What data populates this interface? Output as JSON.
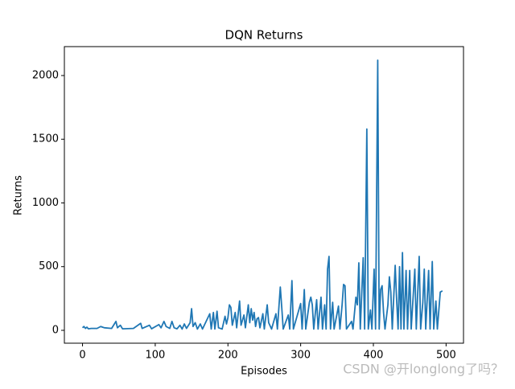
{
  "chart_data": {
    "type": "line",
    "title": "DQN Returns",
    "x_label": "Episodes",
    "y_label": "Returns",
    "color": "#1f77b4",
    "x": [
      0,
      2,
      4,
      6,
      8,
      12,
      20,
      25,
      30,
      40,
      46,
      48,
      52,
      55,
      70,
      80,
      82,
      92,
      95,
      105,
      108,
      112,
      115,
      120,
      123,
      126,
      130,
      134,
      137,
      140,
      143,
      148,
      150,
      152,
      155,
      158,
      162,
      165,
      175,
      177,
      180,
      182,
      185,
      187,
      192,
      196,
      198,
      200,
      202,
      204,
      206,
      210,
      212,
      216,
      218,
      222,
      224,
      228,
      230,
      232,
      234,
      236,
      238,
      240,
      242,
      244,
      248,
      250,
      254,
      256,
      260,
      266,
      268,
      272,
      274,
      276,
      283,
      285,
      288,
      290,
      300,
      302,
      305,
      307,
      312,
      314,
      316,
      318,
      322,
      324,
      328,
      330,
      333,
      335,
      337,
      339,
      341,
      344,
      346,
      352,
      354,
      357,
      359,
      361,
      363,
      370,
      372,
      376,
      378,
      380,
      382,
      386,
      388,
      391,
      393,
      396,
      398,
      401,
      403,
      406,
      408,
      410,
      412,
      414,
      416,
      420,
      422,
      424,
      426,
      430,
      432,
      434,
      436,
      438,
      440,
      442,
      445,
      447,
      450,
      452,
      457,
      459,
      463,
      465,
      468,
      470,
      472,
      476,
      478,
      481,
      483,
      486,
      488,
      492,
      495
    ],
    "values": [
      20,
      30,
      15,
      25,
      12,
      15,
      15,
      30,
      20,
      15,
      70,
      20,
      40,
      12,
      15,
      55,
      15,
      40,
      12,
      45,
      20,
      70,
      30,
      15,
      70,
      20,
      12,
      40,
      10,
      50,
      15,
      60,
      170,
      30,
      60,
      10,
      50,
      10,
      130,
      10,
      140,
      10,
      150,
      20,
      10,
      110,
      50,
      100,
      200,
      180,
      40,
      140,
      20,
      230,
      40,
      120,
      20,
      200,
      60,
      170,
      80,
      140,
      30,
      90,
      100,
      20,
      130,
      10,
      200,
      60,
      10,
      130,
      10,
      340,
      180,
      10,
      120,
      10,
      390,
      10,
      210,
      10,
      320,
      10,
      220,
      260,
      200,
      10,
      240,
      10,
      260,
      10,
      200,
      10,
      480,
      580,
      10,
      220,
      10,
      190,
      10,
      200,
      360,
      350,
      10,
      70,
      10,
      260,
      200,
      530,
      10,
      570,
      10,
      1580,
      10,
      160,
      10,
      480,
      10,
      2120,
      10,
      320,
      350,
      140,
      10,
      200,
      420,
      300,
      10,
      510,
      240,
      10,
      500,
      10,
      610,
      10,
      470,
      10,
      470,
      10,
      480,
      10,
      580,
      10,
      220,
      480,
      10,
      470,
      10,
      540,
      10,
      230,
      10,
      300,
      310
    ],
    "xlim": [
      -24.95,
      523.95
    ],
    "xticks": [
      0,
      100,
      200,
      300,
      400,
      500
    ],
    "ylim": [
      -101,
      2227
    ],
    "yticks": [
      0,
      500,
      1000,
      1500,
      2000
    ],
    "watermark": "CSDN @开longlong了吗？"
  }
}
